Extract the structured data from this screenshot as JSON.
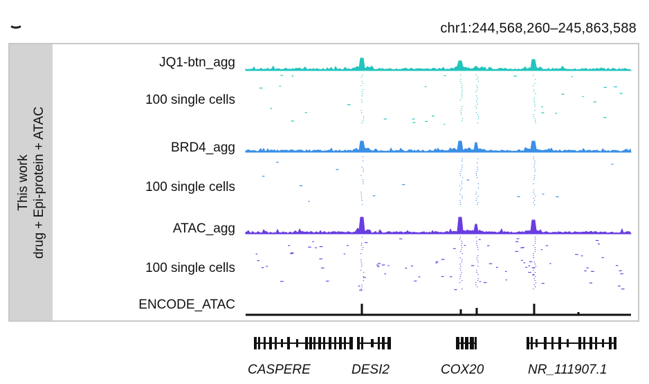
{
  "header": {
    "coordinates": "chr1:244,568,260–245,863,588"
  },
  "sidebar": {
    "line1": "This work",
    "line2": "drug + Epi-protein + ATAC"
  },
  "tracks": [
    {
      "label": "JQ1-btn_agg",
      "kind": "aggregate",
      "color": "#22c4bd"
    },
    {
      "label": "100 single cells",
      "kind": "single-cells",
      "color": "#22c4bd"
    },
    {
      "label": "BRD4_agg",
      "kind": "aggregate",
      "color": "#3a8fe6"
    },
    {
      "label": "100 single cells",
      "kind": "single-cells",
      "color": "#3a8fe6"
    },
    {
      "label": "ATAC_agg",
      "kind": "aggregate",
      "color": "#6a3de0"
    },
    {
      "label": "100 single cells",
      "kind": "single-cells",
      "color": "#6a3de0"
    },
    {
      "label": "ENCODE_ATAC",
      "kind": "reference",
      "color": "#111111"
    }
  ],
  "genes": [
    {
      "name": "CASPERE"
    },
    {
      "name": "DESI2"
    },
    {
      "name": "COX20"
    },
    {
      "name": "NR_111907.1"
    }
  ]
}
